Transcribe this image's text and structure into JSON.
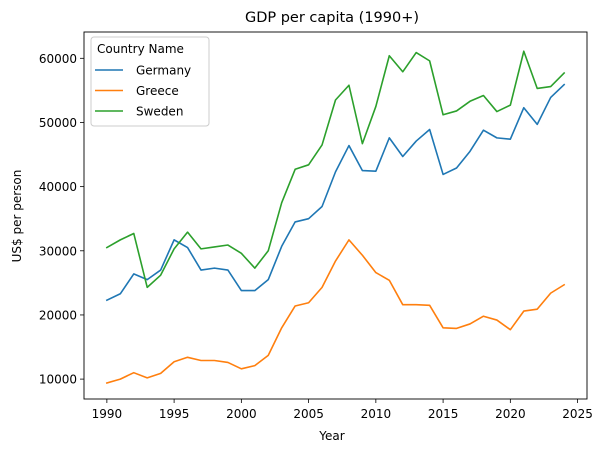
{
  "chart_data": {
    "type": "line",
    "title": "GDP per capita (1990+)",
    "xlabel": "Year",
    "ylabel": "US$ per person",
    "xlim": [
      1988.3,
      2025.7
    ],
    "ylim": [
      6900,
      64100
    ],
    "xticks": [
      1990,
      1995,
      2000,
      2005,
      2010,
      2015,
      2020,
      2025
    ],
    "yticks": [
      10000,
      20000,
      30000,
      40000,
      50000,
      60000
    ],
    "grid": false,
    "legend": {
      "title": "Country Name",
      "position": "top-left"
    },
    "x": [
      1990,
      1991,
      1992,
      1993,
      1994,
      1995,
      1996,
      1997,
      1998,
      1999,
      2000,
      2001,
      2002,
      2003,
      2004,
      2005,
      2006,
      2007,
      2008,
      2009,
      2010,
      2011,
      2012,
      2013,
      2014,
      2015,
      2016,
      2017,
      2018,
      2019,
      2020,
      2021,
      2022,
      2023,
      2024
    ],
    "series": [
      {
        "name": "Germany",
        "color": "#1f77b4",
        "values": [
          22300,
          23300,
          26400,
          25500,
          27000,
          31700,
          30500,
          27000,
          27300,
          27000,
          23800,
          23800,
          25500,
          30700,
          34500,
          35000,
          36900,
          42300,
          46400,
          42500,
          42400,
          47600,
          44700,
          47100,
          48900,
          41900,
          42900,
          45500,
          48800,
          47600,
          47400,
          52300,
          49700,
          53900,
          55900
        ]
      },
      {
        "name": "Greece",
        "color": "#ff7f0e",
        "values": [
          9400,
          10000,
          11000,
          10200,
          10900,
          12700,
          13400,
          12900,
          12900,
          12600,
          11600,
          12100,
          13700,
          18000,
          21400,
          21900,
          24300,
          28400,
          31700,
          29300,
          26600,
          25400,
          21600,
          21600,
          21500,
          18000,
          17900,
          18600,
          19800,
          19200,
          17700,
          20600,
          20900,
          23400,
          24700
        ]
      },
      {
        "name": "Sweden",
        "color": "#2ca02c",
        "values": [
          30500,
          31700,
          32700,
          24300,
          26200,
          30300,
          32900,
          30300,
          30600,
          30900,
          29600,
          27300,
          30000,
          37500,
          42700,
          43400,
          46500,
          53500,
          55800,
          46700,
          52500,
          60400,
          57900,
          60900,
          59600,
          51200,
          51800,
          53300,
          54200,
          51700,
          52700,
          61100,
          55300,
          55600,
          57700
        ]
      }
    ]
  }
}
